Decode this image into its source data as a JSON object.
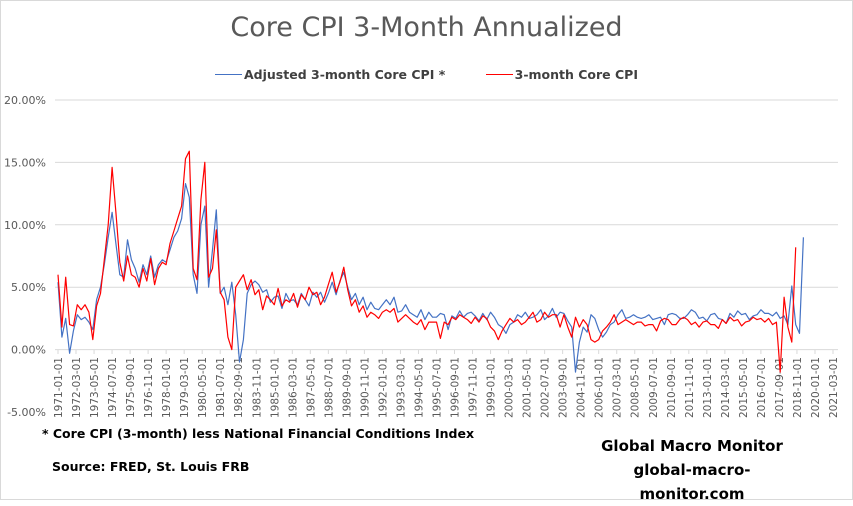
{
  "chart_data": {
    "type": "line",
    "title": "Core CPI 3-Month Annualized",
    "xlabel": "",
    "ylabel": "",
    "ylim": [
      -5,
      20
    ],
    "yticks": [
      20,
      15,
      10,
      5,
      0,
      -5
    ],
    "ytick_labels": [
      "20.00%",
      "15.00%",
      "10.00%",
      "5.00%",
      "0.00%",
      "-5.00%"
    ],
    "grid": true,
    "legend_position": "top-center",
    "x_start": "1971-01",
    "x_step_months": 3,
    "x_tick_labels": [
      "1971-01-01",
      "1972-03-01",
      "1973-05-01",
      "1974-07-01",
      "1975-09-01",
      "1976-11-01",
      "1978-01-01",
      "1979-03-01",
      "1980-05-01",
      "1981-07-01",
      "1982-09-01",
      "1983-11-01",
      "1985-01-01",
      "1986-03-01",
      "1987-05-01",
      "1988-07-01",
      "1989-09-01",
      "1990-11-01",
      "1992-01-01",
      "1993-03-01",
      "1994-05-01",
      "1995-07-01",
      "1996-09-01",
      "1997-11-01",
      "1999-01-01",
      "2000-03-01",
      "2001-05-01",
      "2002-07-01",
      "2003-09-01",
      "2004-11-01",
      "2006-01-01",
      "2007-03-01",
      "2008-05-01",
      "2009-07-01",
      "2010-09-01",
      "2011-11-01",
      "2013-01-01",
      "2014-03-01",
      "2015-05-01",
      "2016-07-01",
      "2017-09-01",
      "2018-11-01",
      "2020-01-01",
      "2021-03-01"
    ],
    "series": [
      {
        "name": "Adjusted 3-month Core CPI *",
        "color": "#4472C4",
        "values": [
          5.4,
          1.0,
          2.5,
          -0.3,
          1.5,
          2.8,
          2.4,
          2.6,
          2.2,
          1.6,
          4.0,
          5.0,
          6.8,
          9.0,
          11.0,
          8.5,
          6.0,
          5.8,
          8.8,
          7.2,
          6.5,
          5.4,
          6.8,
          6.0,
          7.5,
          5.8,
          6.8,
          7.2,
          7.0,
          8.0,
          9.0,
          9.5,
          10.5,
          13.3,
          12.2,
          6.0,
          4.5,
          10.0,
          11.5,
          5.0,
          8.0,
          11.2,
          4.5,
          5.0,
          3.6,
          5.4,
          2.8,
          -1.0,
          0.8,
          4.5,
          5.2,
          5.5,
          5.2,
          4.6,
          4.8,
          3.8,
          4.2,
          4.3,
          3.3,
          4.5,
          3.9,
          4.0,
          3.6,
          4.5,
          4.0,
          3.5,
          4.6,
          4.2,
          4.6,
          3.8,
          4.5,
          5.4,
          4.4,
          5.5,
          6.2,
          5.0,
          4.0,
          4.5,
          3.6,
          4.2,
          3.2,
          3.8,
          3.3,
          3.2,
          3.6,
          4.0,
          3.6,
          4.2,
          3.0,
          3.1,
          3.6,
          3.0,
          2.8,
          2.6,
          3.2,
          2.4,
          3.0,
          2.6,
          2.6,
          2.9,
          2.8,
          1.6,
          2.7,
          2.5,
          3.1,
          2.6,
          2.9,
          3.0,
          2.7,
          2.3,
          2.9,
          2.4,
          3.0,
          2.6,
          2.0,
          1.8,
          1.3,
          2.0,
          2.2,
          2.8,
          2.6,
          3.0,
          2.5,
          2.6,
          2.8,
          3.2,
          2.4,
          2.7,
          3.3,
          2.6,
          3.0,
          2.9,
          2.3,
          1.8,
          -1.8,
          0.6,
          1.8,
          1.4,
          2.8,
          2.5,
          1.6,
          1.0,
          1.4,
          2.0,
          2.2,
          2.8,
          3.2,
          2.5,
          2.6,
          2.8,
          2.6,
          2.5,
          2.6,
          2.8,
          2.4,
          2.5,
          2.6,
          2.0,
          2.8,
          2.9,
          2.8,
          2.5,
          2.5,
          2.8,
          3.2,
          3.0,
          2.5,
          2.6,
          2.3,
          2.8,
          2.9,
          2.5,
          2.4,
          2.1,
          2.9,
          2.6,
          3.1,
          2.8,
          2.9,
          2.4,
          2.7,
          2.8,
          3.2,
          2.9,
          2.9,
          2.7,
          3.0,
          2.5,
          2.7,
          2.0,
          5.1,
          2.0,
          1.3,
          9.0
        ]
      },
      {
        "name": "3-month Core CPI",
        "color": "#FF0000",
        "values": [
          6.0,
          1.8,
          5.8,
          2.0,
          1.9,
          3.6,
          3.2,
          3.6,
          3.0,
          0.8,
          3.5,
          4.5,
          7.2,
          10.0,
          14.6,
          11.0,
          7.0,
          5.5,
          7.5,
          6.0,
          5.8,
          5.0,
          6.5,
          5.5,
          7.3,
          5.2,
          6.5,
          7.0,
          6.8,
          8.5,
          9.5,
          10.5,
          11.5,
          15.3,
          15.9,
          6.5,
          5.6,
          12.0,
          15.0,
          5.8,
          6.5,
          9.6,
          4.6,
          4.0,
          1.0,
          0.0,
          5.0,
          5.5,
          6.0,
          4.8,
          5.6,
          4.4,
          4.8,
          3.2,
          4.3,
          4.0,
          3.6,
          4.9,
          3.5,
          4.0,
          3.8,
          4.5,
          3.4,
          4.4,
          4.0,
          5.0,
          4.4,
          4.6,
          3.6,
          4.2,
          5.2,
          6.2,
          4.6,
          5.4,
          6.6,
          4.8,
          3.5,
          4.0,
          3.0,
          3.5,
          2.6,
          3.0,
          2.8,
          2.5,
          3.0,
          3.2,
          3.0,
          3.3,
          2.2,
          2.5,
          2.8,
          2.5,
          2.2,
          2.0,
          2.4,
          1.6,
          2.2,
          2.2,
          2.2,
          0.9,
          2.2,
          2.0,
          2.6,
          2.4,
          2.8,
          2.6,
          2.4,
          2.1,
          2.6,
          2.2,
          2.7,
          2.5,
          1.8,
          1.5,
          0.8,
          1.5,
          2.0,
          2.5,
          2.2,
          2.4,
          2.0,
          2.2,
          2.6,
          3.0,
          2.2,
          2.4,
          3.0,
          2.6,
          2.8,
          2.8,
          1.8,
          2.8,
          1.8,
          1.0,
          2.6,
          1.8,
          2.4,
          2.0,
          0.8,
          0.6,
          0.8,
          1.5,
          1.8,
          2.2,
          2.8,
          2.0,
          2.2,
          2.4,
          2.2,
          2.0,
          2.2,
          2.2,
          1.9,
          2.0,
          2.0,
          1.5,
          2.3,
          2.5,
          2.4,
          2.0,
          2.0,
          2.4,
          2.6,
          2.4,
          2.0,
          2.2,
          1.8,
          2.2,
          2.3,
          2.0,
          2.0,
          1.7,
          2.4,
          2.1,
          2.6,
          2.3,
          2.4,
          1.9,
          2.2,
          2.3,
          2.6,
          2.4,
          2.5,
          2.2,
          2.5,
          2.0,
          2.2,
          -1.8,
          4.2,
          1.8,
          0.6,
          8.2
        ]
      }
    ],
    "footnote": "* Core CPI (3-month) less National Financial Conditions Index",
    "source": "Source:  FRED,  St. Louis FRB",
    "brand_name": "Global Macro Monitor",
    "brand_url": "global-macro-monitor.com"
  }
}
